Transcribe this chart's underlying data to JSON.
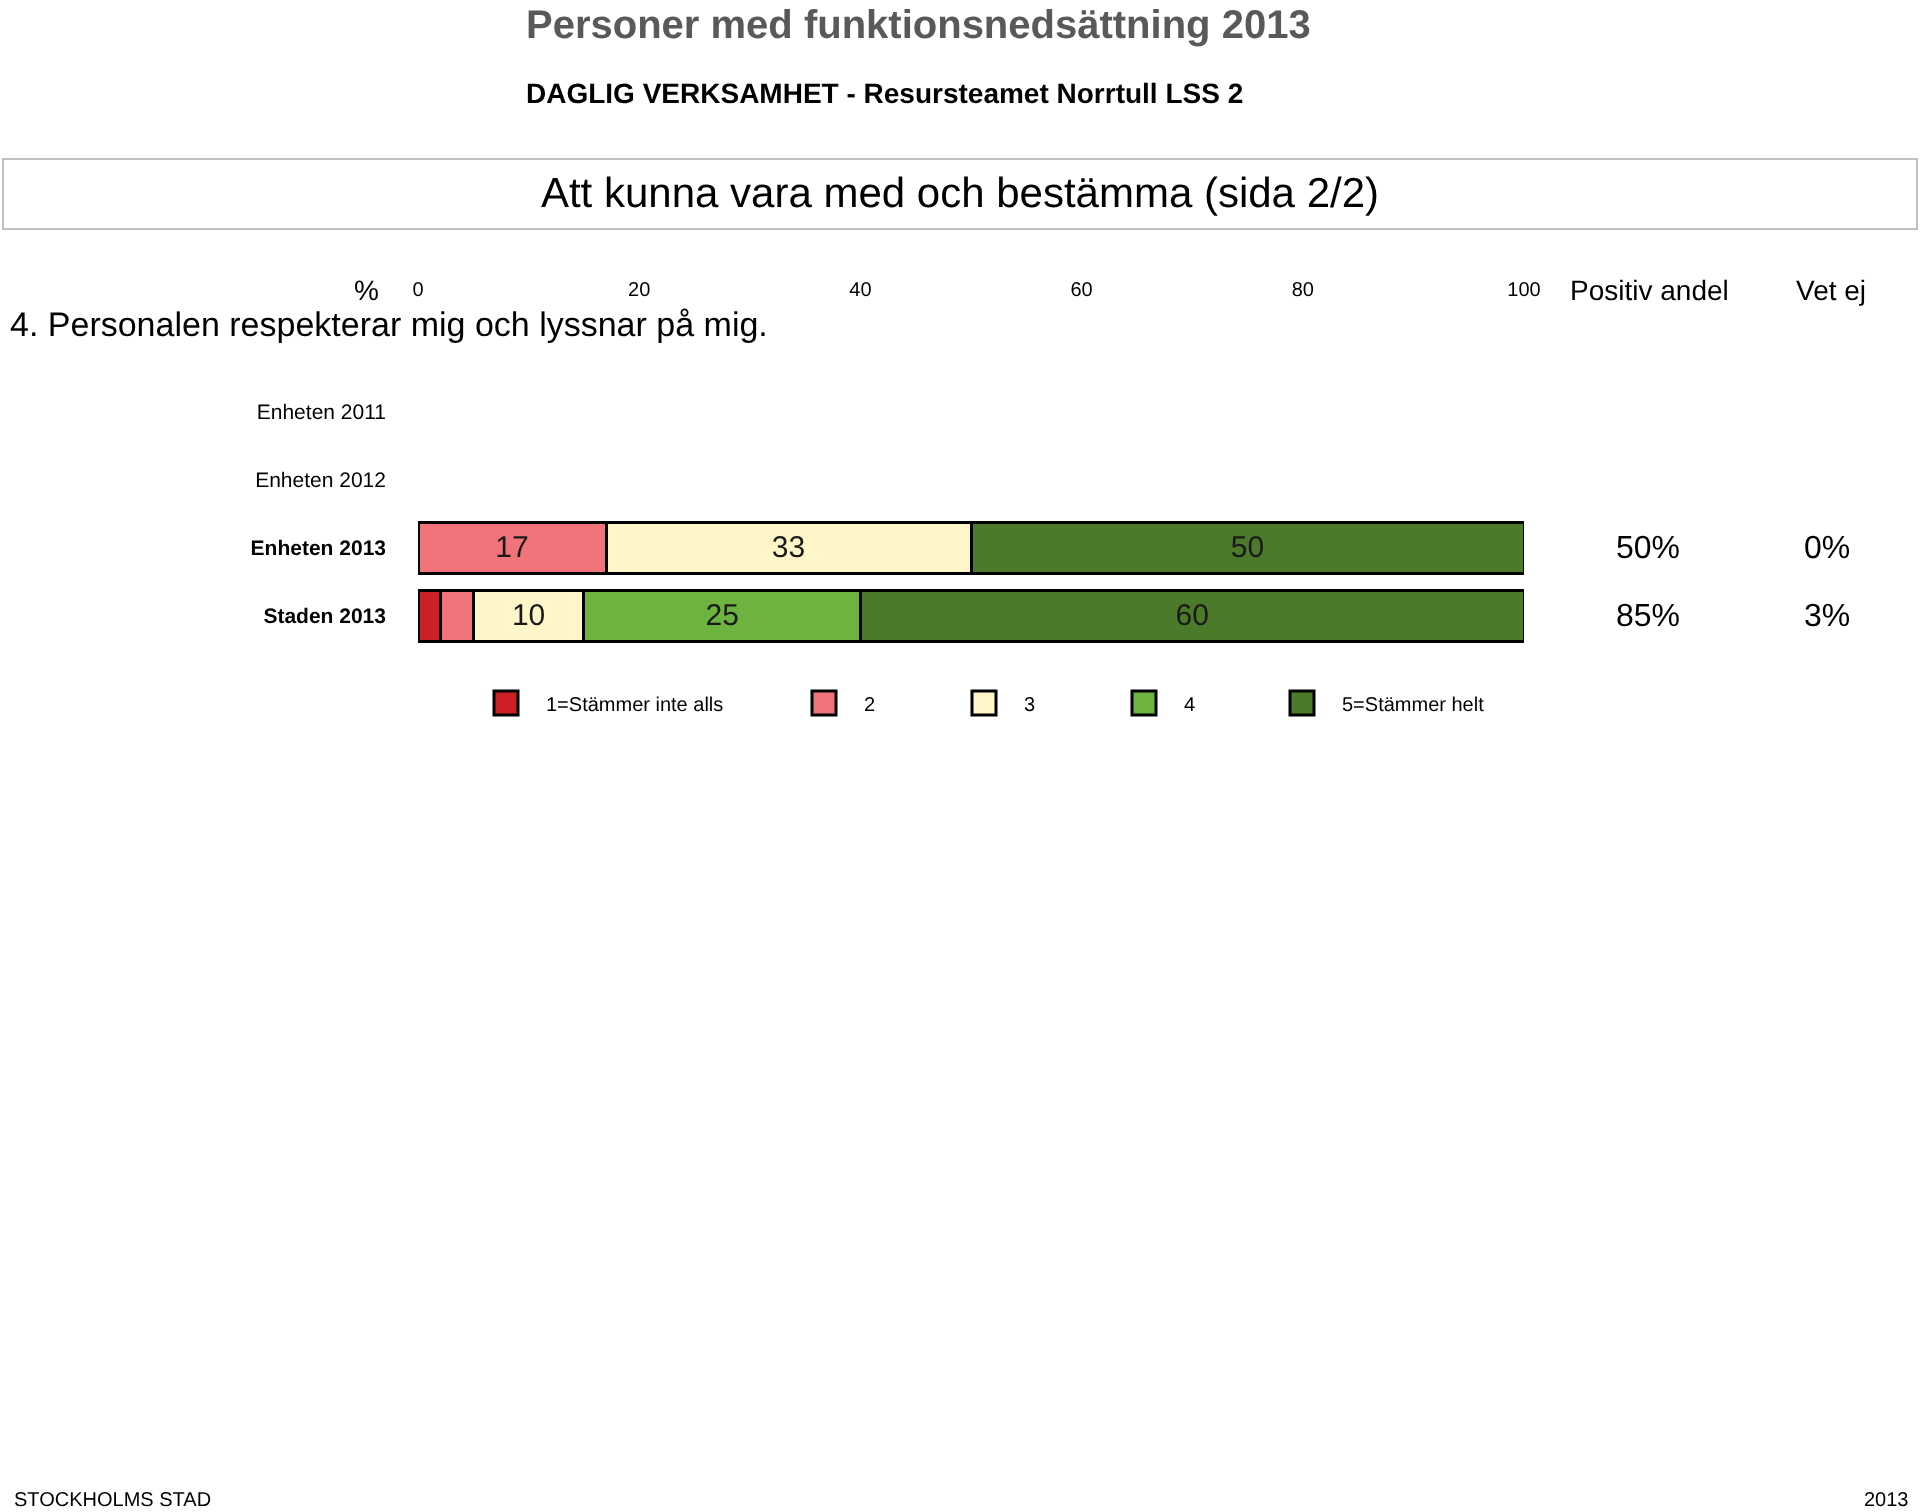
{
  "chart_data": {
    "type": "bar",
    "orientation": "horizontal",
    "stacked": true,
    "title": "Personer med funktionsnedsättning 2013",
    "subtitle": "DAGLIG VERKSAMHET - Resursteamet Norrtull LSS 2",
    "xlabel": "%",
    "categories": [
      "Enheten 2011",
      "Enheten 2012",
      "Enheten 2013",
      "Staden 2013"
    ],
    "series": [
      {
        "name": "1=Stämmer inte alls",
        "color": "#cc1f26",
        "values": [
          null,
          null,
          0,
          2
        ],
        "value_labels": [
          null,
          null,
          null,
          null
        ]
      },
      {
        "name": "2",
        "color": "#f07479",
        "values": [
          null,
          null,
          17,
          3
        ],
        "value_labels": [
          null,
          null,
          "17",
          null
        ]
      },
      {
        "name": "3",
        "color": "#fef5c8",
        "values": [
          null,
          null,
          33,
          10
        ],
        "value_labels": [
          null,
          null,
          "33",
          "10"
        ]
      },
      {
        "name": "4",
        "color": "#6db33f",
        "values": [
          null,
          null,
          0,
          25
        ],
        "value_labels": [
          null,
          null,
          null,
          "25"
        ]
      },
      {
        "name": "5=Stämmer helt",
        "color": "#4b7a2b",
        "values": [
          null,
          null,
          50,
          60
        ],
        "value_labels": [
          null,
          null,
          "50",
          "60"
        ]
      }
    ],
    "xlim": [
      0,
      100
    ],
    "xticks": [
      0,
      20,
      40,
      60,
      80,
      100
    ],
    "legend": "bottom",
    "annotations": [
      "Att kunna vara med och bestämma (sida 2/2)",
      "4. Personalen respekterar mig och lyssnar på mig.",
      "Positiv andel",
      "Vet ej",
      "50%",
      "0%",
      "85%",
      "3%",
      "STOCKHOLMS STAD",
      "2013"
    ]
  }
}
